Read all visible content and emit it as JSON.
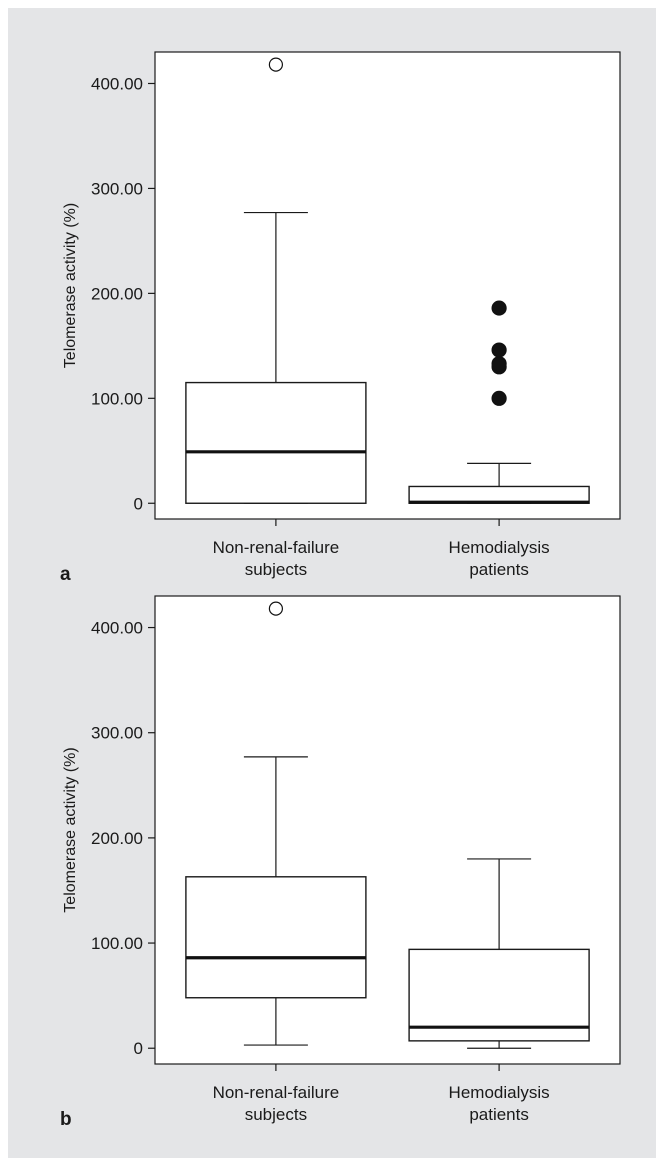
{
  "chart_data": [
    {
      "type": "boxplot",
      "panel_label": "a",
      "ylabel": "Telomerase activity (%)",
      "ylim": [
        -15,
        430
      ],
      "yticks": [
        0,
        100,
        200,
        300,
        400
      ],
      "ytick_labels": [
        "0",
        "100.00",
        "200.00",
        "300.00",
        "400.00"
      ],
      "categories": [
        "Non-renal-failure subjects",
        "Hemodialysis patients"
      ],
      "category_lines": [
        [
          "Non-renal-failure",
          "subjects"
        ],
        [
          "Hemodialysis",
          "patients"
        ]
      ],
      "boxes": [
        {
          "whisker_low": 0,
          "q1": 0,
          "median": 49,
          "q3": 115,
          "whisker_high": 277,
          "outliers": [
            {
              "value": 418,
              "style": "open"
            }
          ]
        },
        {
          "whisker_low": 0,
          "q1": 0,
          "median": 1,
          "q3": 16,
          "whisker_high": 38,
          "outliers": [
            {
              "value": 100,
              "style": "filled"
            },
            {
              "value": 130,
              "style": "filled"
            },
            {
              "value": 133,
              "style": "filled"
            },
            {
              "value": 146,
              "style": "filled"
            },
            {
              "value": 186,
              "style": "filled"
            }
          ]
        }
      ]
    },
    {
      "type": "boxplot",
      "panel_label": "b",
      "ylabel": "Telomerase activity (%)",
      "ylim": [
        -15,
        430
      ],
      "yticks": [
        0,
        100,
        200,
        300,
        400
      ],
      "ytick_labels": [
        "0",
        "100.00",
        "200.00",
        "300.00",
        "400.00"
      ],
      "categories": [
        "Non-renal-failure subjects",
        "Hemodialysis patients"
      ],
      "category_lines": [
        [
          "Non-renal-failure",
          "subjects"
        ],
        [
          "Hemodialysis",
          "patients"
        ]
      ],
      "boxes": [
        {
          "whisker_low": 3,
          "q1": 48,
          "median": 86,
          "q3": 163,
          "whisker_high": 277,
          "outliers": [
            {
              "value": 418,
              "style": "open"
            }
          ]
        },
        {
          "whisker_low": 0,
          "q1": 7,
          "median": 20,
          "q3": 94,
          "whisker_high": 180,
          "outliers": []
        }
      ]
    }
  ]
}
